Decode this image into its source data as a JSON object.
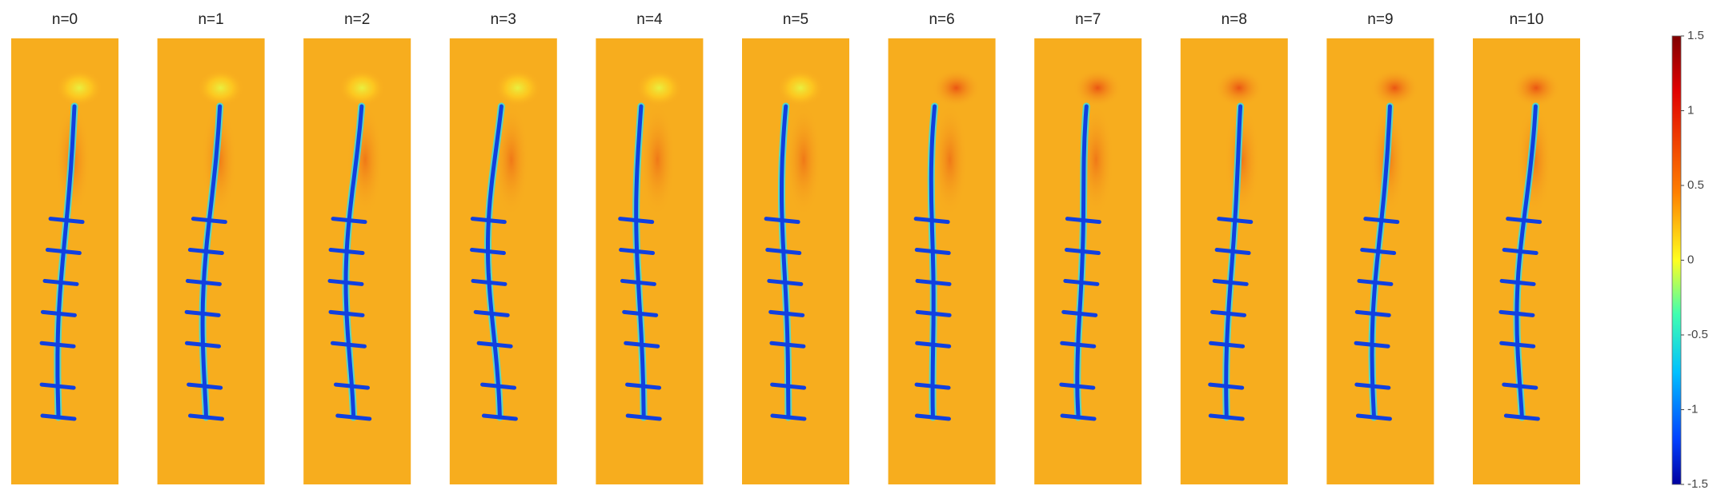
{
  "panels": [
    {
      "title": "n=0"
    },
    {
      "title": "n=1"
    },
    {
      "title": "n=2"
    },
    {
      "title": "n=3"
    },
    {
      "title": "n=4"
    },
    {
      "title": "n=5"
    },
    {
      "title": "n=6"
    },
    {
      "title": "n=7"
    },
    {
      "title": "n=8"
    },
    {
      "title": "n=9"
    },
    {
      "title": "n=10"
    }
  ],
  "colorbar": {
    "range": [
      -1.5,
      1.5
    ],
    "ticks": [
      1.5,
      1,
      0.5,
      0,
      -0.5,
      -1,
      -1.5
    ]
  }
}
